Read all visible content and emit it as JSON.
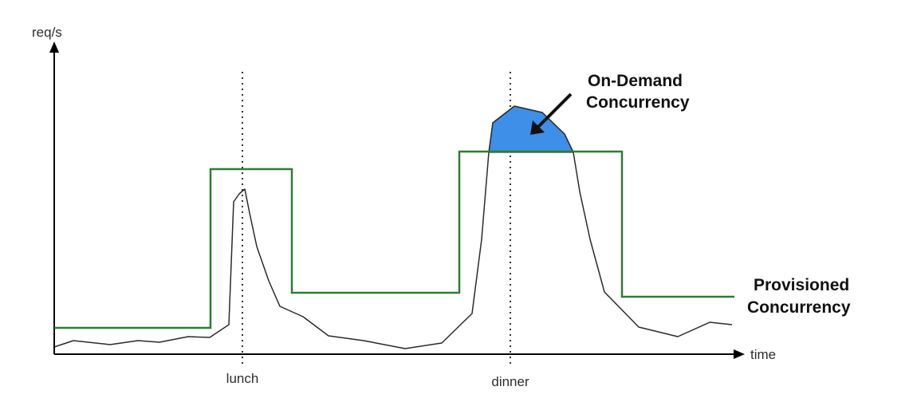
{
  "axes": {
    "y_label": "req/s",
    "x_label": "time"
  },
  "markers": [
    {
      "label": "lunch"
    },
    {
      "label": "dinner"
    }
  ],
  "annotations": {
    "on_demand": {
      "line1": "On-Demand",
      "line2": "Concurrency"
    },
    "provisioned": {
      "line1": "Provisioned",
      "line2": "Concurrency"
    }
  },
  "colors": {
    "axis": "#000000",
    "traffic_line": "#2b2b2b",
    "provisioned_line": "#2e7d32",
    "on_demand_fill": "#3d8fe8",
    "marker_line": "#333333"
  }
}
